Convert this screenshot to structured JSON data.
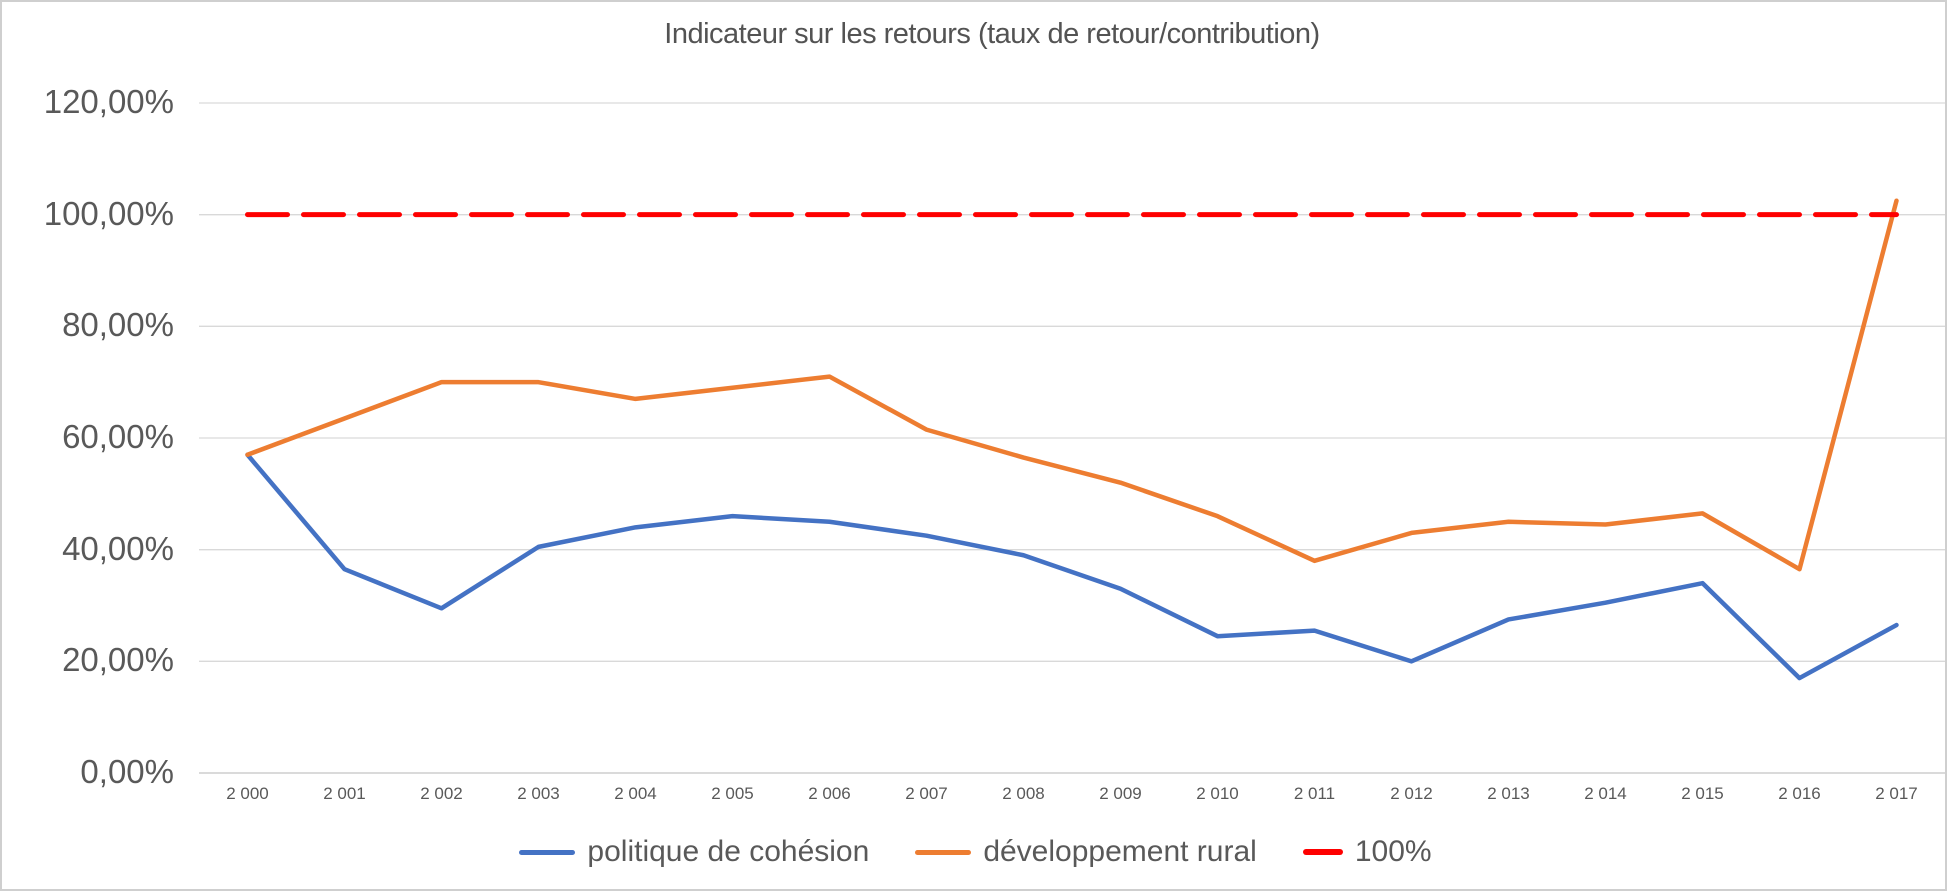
{
  "chart_data": {
    "type": "line",
    "title": "Indicateur sur les retours (taux de retour/contribution)",
    "categories": [
      "2 000",
      "2 001",
      "2 002",
      "2 003",
      "2 004",
      "2 005",
      "2 006",
      "2 007",
      "2 008",
      "2 009",
      "2 010",
      "2 011",
      "2 012",
      "2 013",
      "2 014",
      "2 015",
      "2 016",
      "2 017"
    ],
    "series": [
      {
        "name": "politique de cohésion",
        "color": "#4472C4",
        "style": "solid",
        "values": [
          57,
          36.5,
          29.5,
          40.5,
          44,
          46,
          45,
          42.5,
          39,
          33,
          24.5,
          25.5,
          20,
          27.5,
          30.5,
          34,
          17,
          26.5
        ]
      },
      {
        "name": "développement rural",
        "color": "#ED7D31",
        "style": "solid",
        "values": [
          57,
          63.5,
          70,
          70,
          67,
          69,
          71,
          61.5,
          56.5,
          52,
          46,
          38,
          43,
          45,
          44.5,
          46.5,
          36.5,
          102.5
        ]
      },
      {
        "name": "100%",
        "color": "#FE0000",
        "style": "dashed",
        "values": [
          100,
          100,
          100,
          100,
          100,
          100,
          100,
          100,
          100,
          100,
          100,
          100,
          100,
          100,
          100,
          100,
          100,
          100
        ]
      }
    ],
    "y_axis": {
      "min": 0,
      "max": 120,
      "step": 20,
      "tick_labels": [
        "0,00%",
        "20,00%",
        "40,00%",
        "60,00%",
        "80,00%",
        "100,00%",
        "120,00%"
      ]
    },
    "grid": true,
    "gridline_color": "#d9d9d9",
    "axisline_color": "#c3c3c3",
    "legend_position": "bottom"
  }
}
